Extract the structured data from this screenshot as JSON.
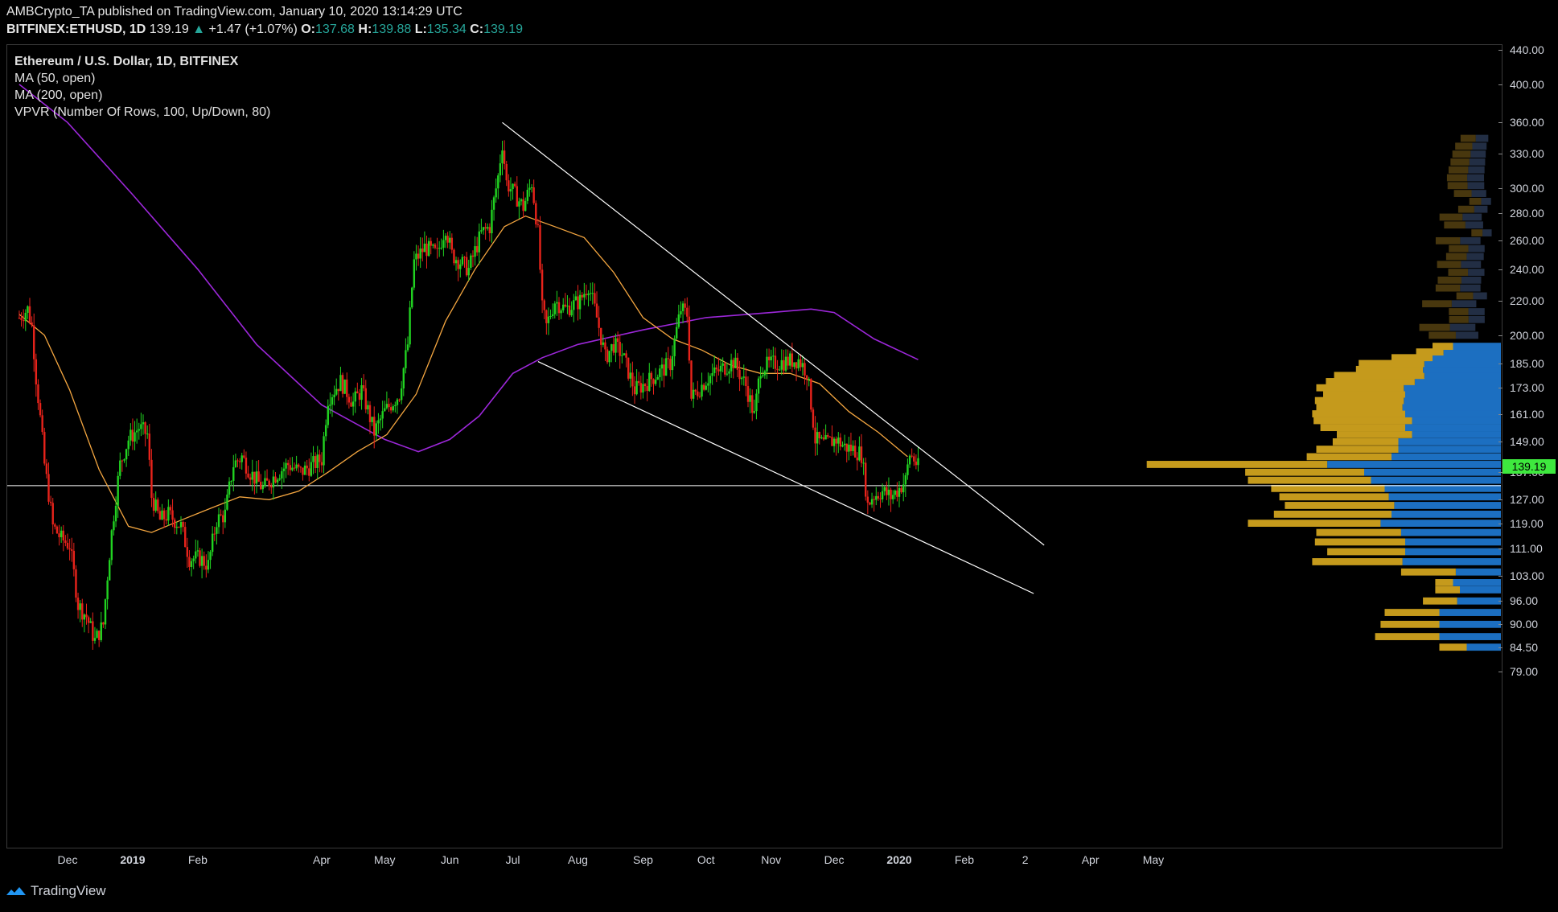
{
  "header": {
    "publisher": "AMBCrypto_TA published on TradingView.com, January 10, 2020 13:14:29 UTC",
    "symbol": "BITFINEX:ETHUSD, 1D",
    "last": "139.19",
    "change": "+1.47 (+1.07%)",
    "o_label": "O:",
    "o": "137.68",
    "h_label": "H:",
    "h": "139.88",
    "l_label": "L:",
    "l": "135.34",
    "c_label": "C:",
    "c": "139.19"
  },
  "legend": {
    "title": "Ethereum / U.S. Dollar, 1D, BITFINEX",
    "ma50": "MA (50, open)",
    "ma200": "MA (200, open)",
    "vpvr": "VPVR (Number Of Rows, 100, Up/Down, 80)"
  },
  "footer": {
    "brand": "TradingView"
  },
  "colors": {
    "up": "#21d321",
    "down": "#e8231b",
    "ma50": "#f4a640",
    "ma200": "#9c27d9",
    "vpvr_up": "#1c6fc1",
    "vpvr_down": "#c59a1c",
    "trendline": "#ffffff",
    "last_price_bg": "#3ee83e"
  },
  "chart_data": {
    "type": "candlestick",
    "symbol": "ETHUSD",
    "exchange": "BITFINEX",
    "timeframe": "1D",
    "y_scale": "log",
    "y_ticks": [
      "440.00",
      "400.00",
      "360.00",
      "330.00",
      "300.00",
      "280.00",
      "260.00",
      "240.00",
      "220.00",
      "200.00",
      "185.00",
      "173.00",
      "161.00",
      "149.00",
      "137.00",
      "127.00",
      "119.00",
      "111.00",
      "103.00",
      "96.00",
      "90.00",
      "84.50",
      "79.00"
    ],
    "last_price": "139.19",
    "x_labels": [
      {
        "label": "Dec",
        "date": "2018-12-01"
      },
      {
        "label": "2019",
        "date": "2019-01-01",
        "bold": true
      },
      {
        "label": "Feb",
        "date": "2019-02-01"
      },
      {
        "label": "Apr",
        "date": "2019-04-01"
      },
      {
        "label": "May",
        "date": "2019-05-01"
      },
      {
        "label": "Jun",
        "date": "2019-06-01"
      },
      {
        "label": "Jul",
        "date": "2019-07-01"
      },
      {
        "label": "Aug",
        "date": "2019-08-01"
      },
      {
        "label": "Sep",
        "date": "2019-09-01"
      },
      {
        "label": "Oct",
        "date": "2019-10-01"
      },
      {
        "label": "Nov",
        "date": "2019-11-01"
      },
      {
        "label": "Dec",
        "date": "2019-12-01"
      },
      {
        "label": "2020",
        "date": "2020-01-01",
        "bold": true
      },
      {
        "label": "Feb",
        "date": "2020-02-01"
      },
      {
        "label": "2",
        "date": "2020-03-01"
      },
      {
        "label": "Apr",
        "date": "2020-04-01"
      },
      {
        "label": "May",
        "date": "2020-05-01"
      }
    ],
    "price_path": [
      [
        "2018-11-08",
        210
      ],
      [
        "2018-11-12",
        215
      ],
      [
        "2018-11-14",
        205
      ],
      [
        "2018-11-16",
        178
      ],
      [
        "2018-11-20",
        140
      ],
      [
        "2018-11-24",
        118
      ],
      [
        "2018-11-28",
        114
      ],
      [
        "2018-12-02",
        112
      ],
      [
        "2018-12-06",
        95
      ],
      [
        "2018-12-10",
        92
      ],
      [
        "2018-12-14",
        86
      ],
      [
        "2018-12-18",
        90
      ],
      [
        "2018-12-22",
        116
      ],
      [
        "2018-12-26",
        140
      ],
      [
        "2018-12-30",
        150
      ],
      [
        "2019-01-04",
        155
      ],
      [
        "2019-01-08",
        152
      ],
      [
        "2019-01-10",
        128
      ],
      [
        "2019-01-14",
        120
      ],
      [
        "2019-01-18",
        122
      ],
      [
        "2019-01-24",
        118
      ],
      [
        "2019-01-28",
        108
      ],
      [
        "2019-02-02",
        108
      ],
      [
        "2019-02-06",
        106
      ],
      [
        "2019-02-10",
        120
      ],
      [
        "2019-02-14",
        122
      ],
      [
        "2019-02-18",
        140
      ],
      [
        "2019-02-22",
        143
      ],
      [
        "2019-02-26",
        137
      ],
      [
        "2019-03-04",
        131
      ],
      [
        "2019-03-10",
        136
      ],
      [
        "2019-03-16",
        140
      ],
      [
        "2019-03-22",
        137
      ],
      [
        "2019-03-28",
        140
      ],
      [
        "2019-04-01",
        142
      ],
      [
        "2019-04-04",
        168
      ],
      [
        "2019-04-10",
        176
      ],
      [
        "2019-04-16",
        166
      ],
      [
        "2019-04-20",
        172
      ],
      [
        "2019-04-26",
        153
      ],
      [
        "2019-05-01",
        162
      ],
      [
        "2019-05-08",
        170
      ],
      [
        "2019-05-12",
        195
      ],
      [
        "2019-05-15",
        245
      ],
      [
        "2019-05-20",
        255
      ],
      [
        "2019-05-26",
        250
      ],
      [
        "2019-05-30",
        270
      ],
      [
        "2019-06-02",
        250
      ],
      [
        "2019-06-06",
        245
      ],
      [
        "2019-06-10",
        240
      ],
      [
        "2019-06-16",
        265
      ],
      [
        "2019-06-20",
        270
      ],
      [
        "2019-06-24",
        310
      ],
      [
        "2019-06-26",
        340
      ],
      [
        "2019-06-28",
        305
      ],
      [
        "2019-07-02",
        295
      ],
      [
        "2019-07-06",
        285
      ],
      [
        "2019-07-10",
        305
      ],
      [
        "2019-07-13",
        265
      ],
      [
        "2019-07-15",
        215
      ],
      [
        "2019-07-17",
        205
      ],
      [
        "2019-07-21",
        220
      ],
      [
        "2019-07-26",
        215
      ],
      [
        "2019-08-02",
        220
      ],
      [
        "2019-08-06",
        230
      ],
      [
        "2019-08-10",
        210
      ],
      [
        "2019-08-14",
        188
      ],
      [
        "2019-08-18",
        195
      ],
      [
        "2019-08-22",
        190
      ],
      [
        "2019-08-28",
        172
      ],
      [
        "2019-09-02",
        175
      ],
      [
        "2019-09-08",
        180
      ],
      [
        "2019-09-14",
        185
      ],
      [
        "2019-09-19",
        215
      ],
      [
        "2019-09-22",
        212
      ],
      [
        "2019-09-24",
        168
      ],
      [
        "2019-09-28",
        173
      ],
      [
        "2019-10-02",
        178
      ],
      [
        "2019-10-08",
        182
      ],
      [
        "2019-10-14",
        186
      ],
      [
        "2019-10-20",
        174
      ],
      [
        "2019-10-24",
        160
      ],
      [
        "2019-10-27",
        183
      ],
      [
        "2019-11-02",
        185
      ],
      [
        "2019-11-08",
        186
      ],
      [
        "2019-11-14",
        187
      ],
      [
        "2019-11-18",
        181
      ],
      [
        "2019-11-22",
        150
      ],
      [
        "2019-11-26",
        148
      ],
      [
        "2019-12-02",
        150
      ],
      [
        "2019-12-06",
        147
      ],
      [
        "2019-12-10",
        146
      ],
      [
        "2019-12-14",
        144
      ],
      [
        "2019-12-17",
        125
      ],
      [
        "2019-12-19",
        128
      ],
      [
        "2019-12-24",
        130
      ],
      [
        "2019-12-28",
        128
      ],
      [
        "2020-01-01",
        131
      ],
      [
        "2020-01-04",
        134
      ],
      [
        "2020-01-06",
        144
      ],
      [
        "2020-01-08",
        142
      ],
      [
        "2020-01-10",
        139
      ]
    ],
    "ma50_path": [
      [
        "2018-11-08",
        212
      ],
      [
        "2018-11-20",
        200
      ],
      [
        "2018-12-02",
        172
      ],
      [
        "2018-12-16",
        138
      ],
      [
        "2018-12-30",
        118
      ],
      [
        "2019-01-10",
        116
      ],
      [
        "2019-01-24",
        120
      ],
      [
        "2019-02-07",
        124
      ],
      [
        "2019-02-21",
        128
      ],
      [
        "2019-03-07",
        127
      ],
      [
        "2019-03-21",
        130
      ],
      [
        "2019-04-04",
        137
      ],
      [
        "2019-04-18",
        145
      ],
      [
        "2019-05-02",
        152
      ],
      [
        "2019-05-16",
        170
      ],
      [
        "2019-05-30",
        208
      ],
      [
        "2019-06-13",
        240
      ],
      [
        "2019-06-27",
        270
      ],
      [
        "2019-07-07",
        278
      ],
      [
        "2019-07-21",
        270
      ],
      [
        "2019-08-04",
        262
      ],
      [
        "2019-08-18",
        238
      ],
      [
        "2019-09-01",
        210
      ],
      [
        "2019-09-15",
        198
      ],
      [
        "2019-09-29",
        192
      ],
      [
        "2019-10-13",
        184
      ],
      [
        "2019-10-27",
        180
      ],
      [
        "2019-11-10",
        180
      ],
      [
        "2019-11-24",
        175
      ],
      [
        "2019-12-08",
        162
      ],
      [
        "2019-12-22",
        153
      ],
      [
        "2020-01-05",
        143
      ]
    ],
    "ma200_path": [
      [
        "2018-11-08",
        400
      ],
      [
        "2018-12-01",
        360
      ],
      [
        "2019-01-01",
        295
      ],
      [
        "2019-02-01",
        240
      ],
      [
        "2019-03-01",
        195
      ],
      [
        "2019-04-01",
        165
      ],
      [
        "2019-05-01",
        150
      ],
      [
        "2019-05-17",
        145
      ],
      [
        "2019-06-01",
        150
      ],
      [
        "2019-06-15",
        160
      ],
      [
        "2019-07-01",
        180
      ],
      [
        "2019-07-15",
        188
      ],
      [
        "2019-08-01",
        195
      ],
      [
        "2019-09-01",
        203
      ],
      [
        "2019-10-01",
        210
      ],
      [
        "2019-11-01",
        213
      ],
      [
        "2019-11-20",
        215
      ],
      [
        "2019-12-01",
        213
      ],
      [
        "2019-12-20",
        198
      ],
      [
        "2020-01-10",
        187
      ]
    ],
    "annotations": {
      "upper_trendline": [
        [
          "2019-06-26",
          360
        ],
        [
          "2020-03-10",
          112
        ]
      ],
      "lower_trendline": [
        [
          "2019-07-13",
          186
        ],
        [
          "2020-03-05",
          98
        ]
      ],
      "horizontal_line": 132
    },
    "vpvr_rows": [
      {
        "price": 84.5,
        "up": 0.25,
        "down": 0.2
      },
      {
        "price": 87,
        "up": 0.45,
        "down": 0.47
      },
      {
        "price": 90,
        "up": 0.45,
        "down": 0.43
      },
      {
        "price": 93,
        "up": 0.45,
        "down": 0.4
      },
      {
        "price": 96,
        "up": 0.32,
        "down": 0.25
      },
      {
        "price": 99,
        "up": 0.3,
        "down": 0.18
      },
      {
        "price": 101,
        "up": 0.35,
        "down": 0.13
      },
      {
        "price": 104,
        "up": 0.33,
        "down": 0.4
      },
      {
        "price": 107,
        "up": 0.72,
        "down": 0.66
      },
      {
        "price": 110,
        "up": 0.7,
        "down": 0.57
      },
      {
        "price": 113,
        "up": 0.7,
        "down": 0.66
      },
      {
        "price": 116,
        "up": 0.73,
        "down": 0.62
      },
      {
        "price": 119,
        "up": 0.88,
        "down": 0.97
      },
      {
        "price": 122,
        "up": 0.8,
        "down": 0.86
      },
      {
        "price": 125,
        "up": 0.78,
        "down": 0.8
      },
      {
        "price": 128,
        "up": 0.82,
        "down": 0.8
      },
      {
        "price": 131,
        "up": 0.85,
        "down": 0.83
      },
      {
        "price": 134,
        "up": 0.95,
        "down": 0.9
      },
      {
        "price": 137,
        "up": 1.0,
        "down": 0.87
      },
      {
        "price": 140,
        "up": 1.27,
        "down": 1.32
      },
      {
        "price": 143,
        "up": 0.8,
        "down": 0.62
      },
      {
        "price": 146,
        "up": 0.75,
        "down": 0.6
      },
      {
        "price": 149,
        "up": 0.75,
        "down": 0.48
      },
      {
        "price": 152,
        "up": 0.65,
        "down": 0.55
      },
      {
        "price": 155,
        "up": 0.7,
        "down": 0.62
      },
      {
        "price": 158,
        "up": 0.65,
        "down": 0.72
      },
      {
        "price": 161,
        "up": 0.7,
        "down": 0.68
      },
      {
        "price": 164,
        "up": 0.72,
        "down": 0.63
      },
      {
        "price": 167,
        "up": 0.71,
        "down": 0.65
      },
      {
        "price": 170,
        "up": 0.7,
        "down": 0.6
      },
      {
        "price": 173,
        "up": 0.71,
        "down": 0.64
      },
      {
        "price": 176,
        "up": 0.63,
        "down": 0.65
      },
      {
        "price": 179,
        "up": 0.56,
        "down": 0.66
      },
      {
        "price": 182,
        "up": 0.57,
        "down": 0.49
      },
      {
        "price": 185,
        "up": 0.56,
        "down": 0.48
      },
      {
        "price": 188,
        "up": 0.5,
        "down": 0.3
      },
      {
        "price": 191,
        "up": 0.42,
        "down": 0.2
      },
      {
        "price": 194,
        "up": 0.35,
        "down": 0.15
      }
    ]
  }
}
